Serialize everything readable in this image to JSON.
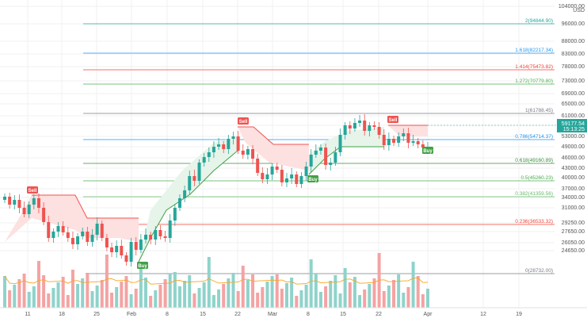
{
  "header": {
    "title": ""
  },
  "axis": {
    "currency": "USD",
    "price_ticks": [
      "104000.00",
      "96000.00",
      "88000.00",
      "83000.00",
      "78000.00",
      "73000.00",
      "69000.00",
      "65000.00",
      "61000.00",
      "57000.00",
      "53000.00",
      "49000.00",
      "46000.00",
      "43000.00",
      "40000.00",
      "37000.00",
      "34000.00",
      "31000.00",
      "29250.00",
      "27650.00",
      "26050.00",
      "24650.00"
    ],
    "date_ticks": [
      "11",
      "18",
      "25",
      "Feb",
      "8",
      "15",
      "22",
      "Mar",
      "8",
      "15",
      "22",
      "Apr",
      "12",
      "19"
    ],
    "current_price": "59177.54",
    "countdown": "15:13:25"
  },
  "fib_levels": [
    {
      "label": "2(94844.90)",
      "color": "#26a69a"
    },
    {
      "label": "1.618(82217.34)",
      "color": "#2196f3"
    },
    {
      "label": "1.414(75473.82)",
      "color": "#f44336"
    },
    {
      "label": "1.272(70779.80)",
      "color": "#4caf50"
    },
    {
      "label": "1(61788.45)",
      "color": "#787b86"
    },
    {
      "label": "0.786(54714.37)",
      "color": "#2196f3"
    },
    {
      "label": "0.618(49160.89)",
      "color": "#388e3c"
    },
    {
      "label": "0.5(45260.23)",
      "color": "#4caf50"
    },
    {
      "label": "0.382(41359.56)",
      "color": "#66bb6a"
    },
    {
      "label": "0.236(36533.32)",
      "color": "#f44336"
    },
    {
      "label": "0(28732.00)",
      "color": "#787b86"
    }
  ],
  "signals": [
    {
      "label": "Sell",
      "type": "sell"
    },
    {
      "label": "Buy",
      "type": "buy"
    },
    {
      "label": "Sell",
      "type": "sell"
    },
    {
      "label": "Buy",
      "type": "buy"
    },
    {
      "label": "Sell",
      "type": "sell"
    },
    {
      "label": "Buy",
      "type": "buy"
    }
  ],
  "colors": {
    "up": "#26a69a",
    "down": "#ef5350",
    "sell_fill": "#fde0e0",
    "buy_fill": "#e6f4ea",
    "sell_line": "#ef5350",
    "buy_line": "#43a047",
    "volume_up": "#8fd3cb",
    "volume_down": "#f4a3a3",
    "ma_line": "#f5a623"
  }
}
